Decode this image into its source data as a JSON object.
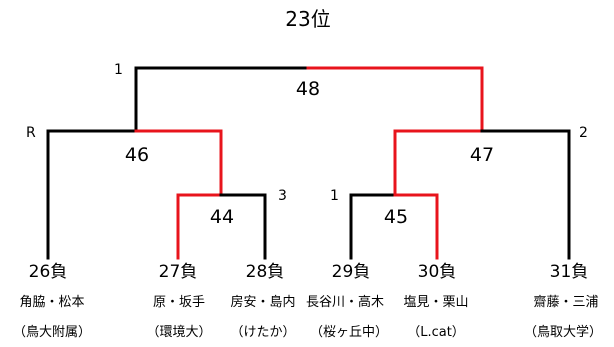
{
  "title": "23位",
  "colors": {
    "winner_line": "#e8141c",
    "loser_line": "#000000"
  },
  "matches": [
    {
      "id": "m48",
      "number": "48",
      "side_label": "1"
    },
    {
      "id": "m46",
      "number": "46",
      "side_label": "R"
    },
    {
      "id": "m47",
      "number": "47",
      "side_label": "2"
    },
    {
      "id": "m44",
      "number": "44",
      "side_label": "3"
    },
    {
      "id": "m45",
      "number": "45",
      "side_label": "1"
    }
  ],
  "teams": [
    {
      "result": "26負",
      "names": "角脇・松本",
      "affiliation": "（鳥大附属）"
    },
    {
      "result": "27負",
      "names": "原・坂手",
      "affiliation": "（環境大）"
    },
    {
      "result": "28負",
      "names": "房安・島内",
      "affiliation": "（けたか）"
    },
    {
      "result": "29負",
      "names": "長谷川・高木",
      "affiliation": "（桜ヶ丘中）"
    },
    {
      "result": "30負",
      "names": "塩見・栗山",
      "affiliation": "（L.cat）"
    },
    {
      "result": "31負",
      "names": "齋藤・三浦",
      "affiliation": "（鳥取大学）"
    }
  ]
}
